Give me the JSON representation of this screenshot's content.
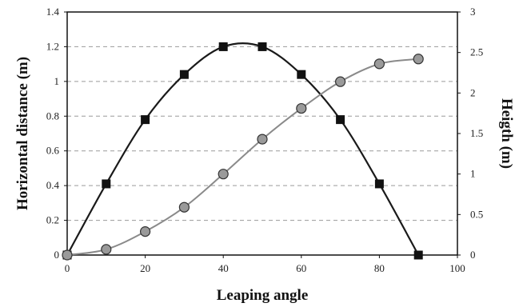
{
  "chart_data": {
    "type": "line",
    "xlabel": "Leaping angle",
    "ylabel": "Horizontal distance (m)",
    "ylabel_right": "Heigth (m)",
    "xlim": [
      0,
      100
    ],
    "ylim": [
      0,
      1.4
    ],
    "ylim_right": [
      0,
      3
    ],
    "x_ticks": [
      "0",
      "20",
      "40",
      "60",
      "80",
      "100"
    ],
    "y_ticks": [
      "0",
      "0.2",
      "0.4",
      "0.6",
      "0.8",
      "1",
      "1.2",
      "1.4"
    ],
    "y_ticks_right": [
      "0",
      "0.5",
      "1",
      "1.5",
      "2",
      "2.5",
      "3"
    ],
    "grid": "horizontal dashed",
    "series": [
      {
        "axis": "left",
        "marker": "square",
        "color": "#1a1a1a",
        "x": [
          0,
          10,
          20,
          30,
          40,
          50,
          60,
          70,
          80,
          90
        ],
        "y": [
          0,
          0.41,
          0.78,
          1.04,
          1.2,
          1.2,
          1.04,
          0.78,
          0.41,
          0
        ]
      },
      {
        "axis": "right",
        "marker": "circle",
        "color": "#8a8a8a",
        "x": [
          0,
          10,
          20,
          30,
          40,
          50,
          60,
          70,
          80,
          90
        ],
        "y": [
          0,
          0.07,
          0.29,
          0.59,
          1.0,
          1.43,
          1.81,
          2.14,
          2.36,
          2.42
        ]
      }
    ]
  }
}
